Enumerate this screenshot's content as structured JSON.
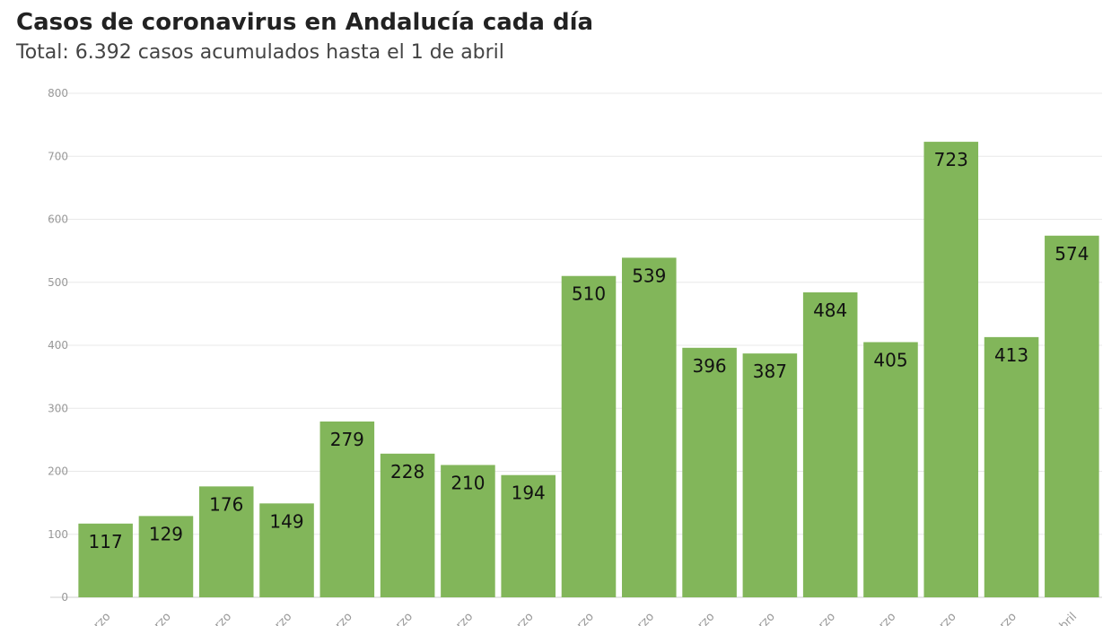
{
  "header": {
    "title": "Casos de coronavirus en Andalucía cada día",
    "subtitle": "Total: 6.392 casos acumulados hasta el 1 de abril"
  },
  "colors": {
    "bar": "#82b65a",
    "grid": "#e8e8e8",
    "axis": "#cccccc"
  },
  "chart_data": {
    "type": "bar",
    "title": "Casos de coronavirus en Andalucía cada día",
    "subtitle": "Total: 6.392 casos acumulados hasta el 1 de abril",
    "xlabel": "",
    "ylabel": "",
    "ylim": [
      0,
      800
    ],
    "yticks": [
      0,
      100,
      200,
      300,
      400,
      500,
      600,
      700,
      800
    ],
    "grid": true,
    "legend": "none",
    "categories": [
      "rzo",
      "rzo",
      "rzo",
      "rzo",
      "rzo",
      "rzo",
      "rzo",
      "rzo",
      "rzo",
      "rzo",
      "rzo",
      "rzo",
      "rzo",
      "rzo",
      "rzo",
      "rzo",
      "abril"
    ],
    "values": [
      117,
      129,
      176,
      149,
      279,
      228,
      210,
      194,
      510,
      539,
      396,
      387,
      484,
      405,
      723,
      413,
      574
    ]
  }
}
